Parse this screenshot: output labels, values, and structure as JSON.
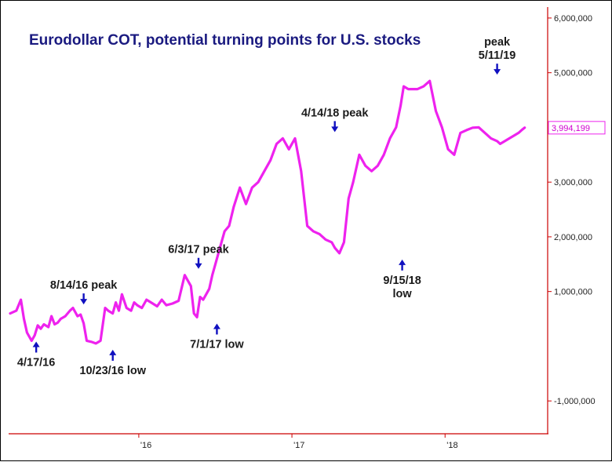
{
  "chart_data": {
    "type": "line",
    "title": "Eurodollar COT, potential turning points for U.S. stocks",
    "ylim": [
      -1600000,
      6200000
    ],
    "y_ticks": [
      -1000000,
      1000000,
      2000000,
      3000000,
      4000000,
      5000000,
      6000000
    ],
    "y_tick_labels": [
      "-1,000,000",
      "1,000,000",
      "2,000,000",
      "3,000,000",
      "4,000,000",
      "5,000,000",
      "6,000,000"
    ],
    "x_ticks": [
      2016.0,
      2017.0,
      2018.0
    ],
    "x_tick_labels": [
      "'16",
      "'17",
      "'18"
    ],
    "xlim": [
      2015.15,
      2018.67
    ],
    "line_color": "#ee22ee",
    "last_value": 3994199,
    "last_value_label": "3,994,199",
    "series": [
      {
        "x": [
          2015.16,
          2015.2,
          2015.23,
          2015.25,
          2015.27,
          2015.3,
          2015.32,
          2015.34,
          2015.36,
          2015.38,
          2015.41,
          2015.43,
          2015.45,
          2015.47,
          2015.49,
          2015.52,
          2015.55,
          2015.57,
          2015.6,
          2015.62,
          2015.64,
          2015.66,
          2015.69,
          2015.72,
          2015.75,
          2015.78,
          2015.8,
          2015.83,
          2015.85,
          2015.87,
          2015.89,
          2015.92,
          2015.95,
          2015.97,
          2015.99,
          2016.02,
          2016.05,
          2016.08,
          2016.12,
          2016.15,
          2016.18,
          2016.22,
          2016.26,
          2016.3,
          2016.34,
          2016.36,
          2016.38,
          2016.4,
          2016.42,
          2016.44,
          2016.46,
          2016.48,
          2016.5,
          2016.53,
          2016.56,
          2016.59,
          2016.62,
          2016.66,
          2016.7,
          2016.74,
          2016.78,
          2016.82,
          2016.86,
          2016.9,
          2016.94,
          2016.98,
          2017.02,
          2017.06,
          2017.1,
          2017.14,
          2017.18,
          2017.22,
          2017.26,
          2017.28,
          2017.31,
          2017.34,
          2017.37,
          2017.4,
          2017.44,
          2017.48,
          2017.52,
          2017.56,
          2017.6,
          2017.64,
          2017.68,
          2017.71,
          2017.73,
          2017.76,
          2017.79,
          2017.82,
          2017.86,
          2017.9,
          2017.94,
          2017.98,
          2018.02,
          2018.06,
          2018.1,
          2018.14,
          2018.18,
          2018.22,
          2018.26,
          2018.3,
          2018.34,
          2018.36,
          2018.39,
          2018.42,
          2018.45,
          2018.48,
          2018.5,
          2018.52
        ],
        "values": [
          600000,
          650000,
          850000,
          500000,
          250000,
          100000,
          200000,
          380000,
          320000,
          400000,
          350000,
          550000,
          400000,
          430000,
          500000,
          550000,
          650000,
          700000,
          550000,
          580000,
          420000,
          100000,
          80000,
          50000,
          100000,
          700000,
          650000,
          600000,
          800000,
          650000,
          950000,
          700000,
          650000,
          800000,
          750000,
          700000,
          850000,
          800000,
          730000,
          850000,
          750000,
          780000,
          830000,
          1300000,
          1100000,
          600000,
          530000,
          900000,
          850000,
          950000,
          1050000,
          1300000,
          1500000,
          1800000,
          2100000,
          2200000,
          2550000,
          2900000,
          2600000,
          2900000,
          3000000,
          3200000,
          3400000,
          3700000,
          3800000,
          3600000,
          3800000,
          3200000,
          2200000,
          2100000,
          2050000,
          1950000,
          1900000,
          1800000,
          1700000,
          1900000,
          2700000,
          3000000,
          3500000,
          3300000,
          3200000,
          3300000,
          3500000,
          3800000,
          4000000,
          4400000,
          4750000,
          4700000,
          4700000,
          4700000,
          4750000,
          4850000,
          4300000,
          4000000,
          3600000,
          3500000,
          3900000,
          3950000,
          3994199,
          4000000,
          3900000,
          3800000,
          3750000,
          3700000,
          3750000,
          3800000,
          3850000,
          3900000,
          3950000,
          3994199
        ]
      }
    ],
    "annotations": [
      {
        "id": "a1",
        "lines": [
          "4/17/16"
        ],
        "x": 2015.33,
        "y": 200000,
        "arrow": "up"
      },
      {
        "id": "a2",
        "lines": [
          "8/14/16 peak"
        ],
        "x": 2015.64,
        "y": 650000,
        "arrow": "down"
      },
      {
        "id": "a3",
        "lines": [
          "10/23/16 low"
        ],
        "x": 2015.83,
        "y": 50000,
        "arrow": "up"
      },
      {
        "id": "a4",
        "lines": [
          "6/3/17 peak"
        ],
        "x": 2016.39,
        "y": 1300000,
        "arrow": "down"
      },
      {
        "id": "a5",
        "lines": [
          "7/1/17 low"
        ],
        "x": 2016.51,
        "y": 530000,
        "arrow": "up"
      },
      {
        "id": "a6",
        "lines": [
          "4/14/18  peak"
        ],
        "x": 2017.28,
        "y": 3800000,
        "arrow": "down"
      },
      {
        "id": "a7",
        "lines": [
          "9/15/18",
          "low"
        ],
        "x": 2017.72,
        "y": 1700000,
        "arrow": "up"
      },
      {
        "id": "a8",
        "lines": [
          "peak",
          "5/11/19"
        ],
        "x": 2018.34,
        "y": 4850000,
        "arrow": "down"
      }
    ]
  }
}
